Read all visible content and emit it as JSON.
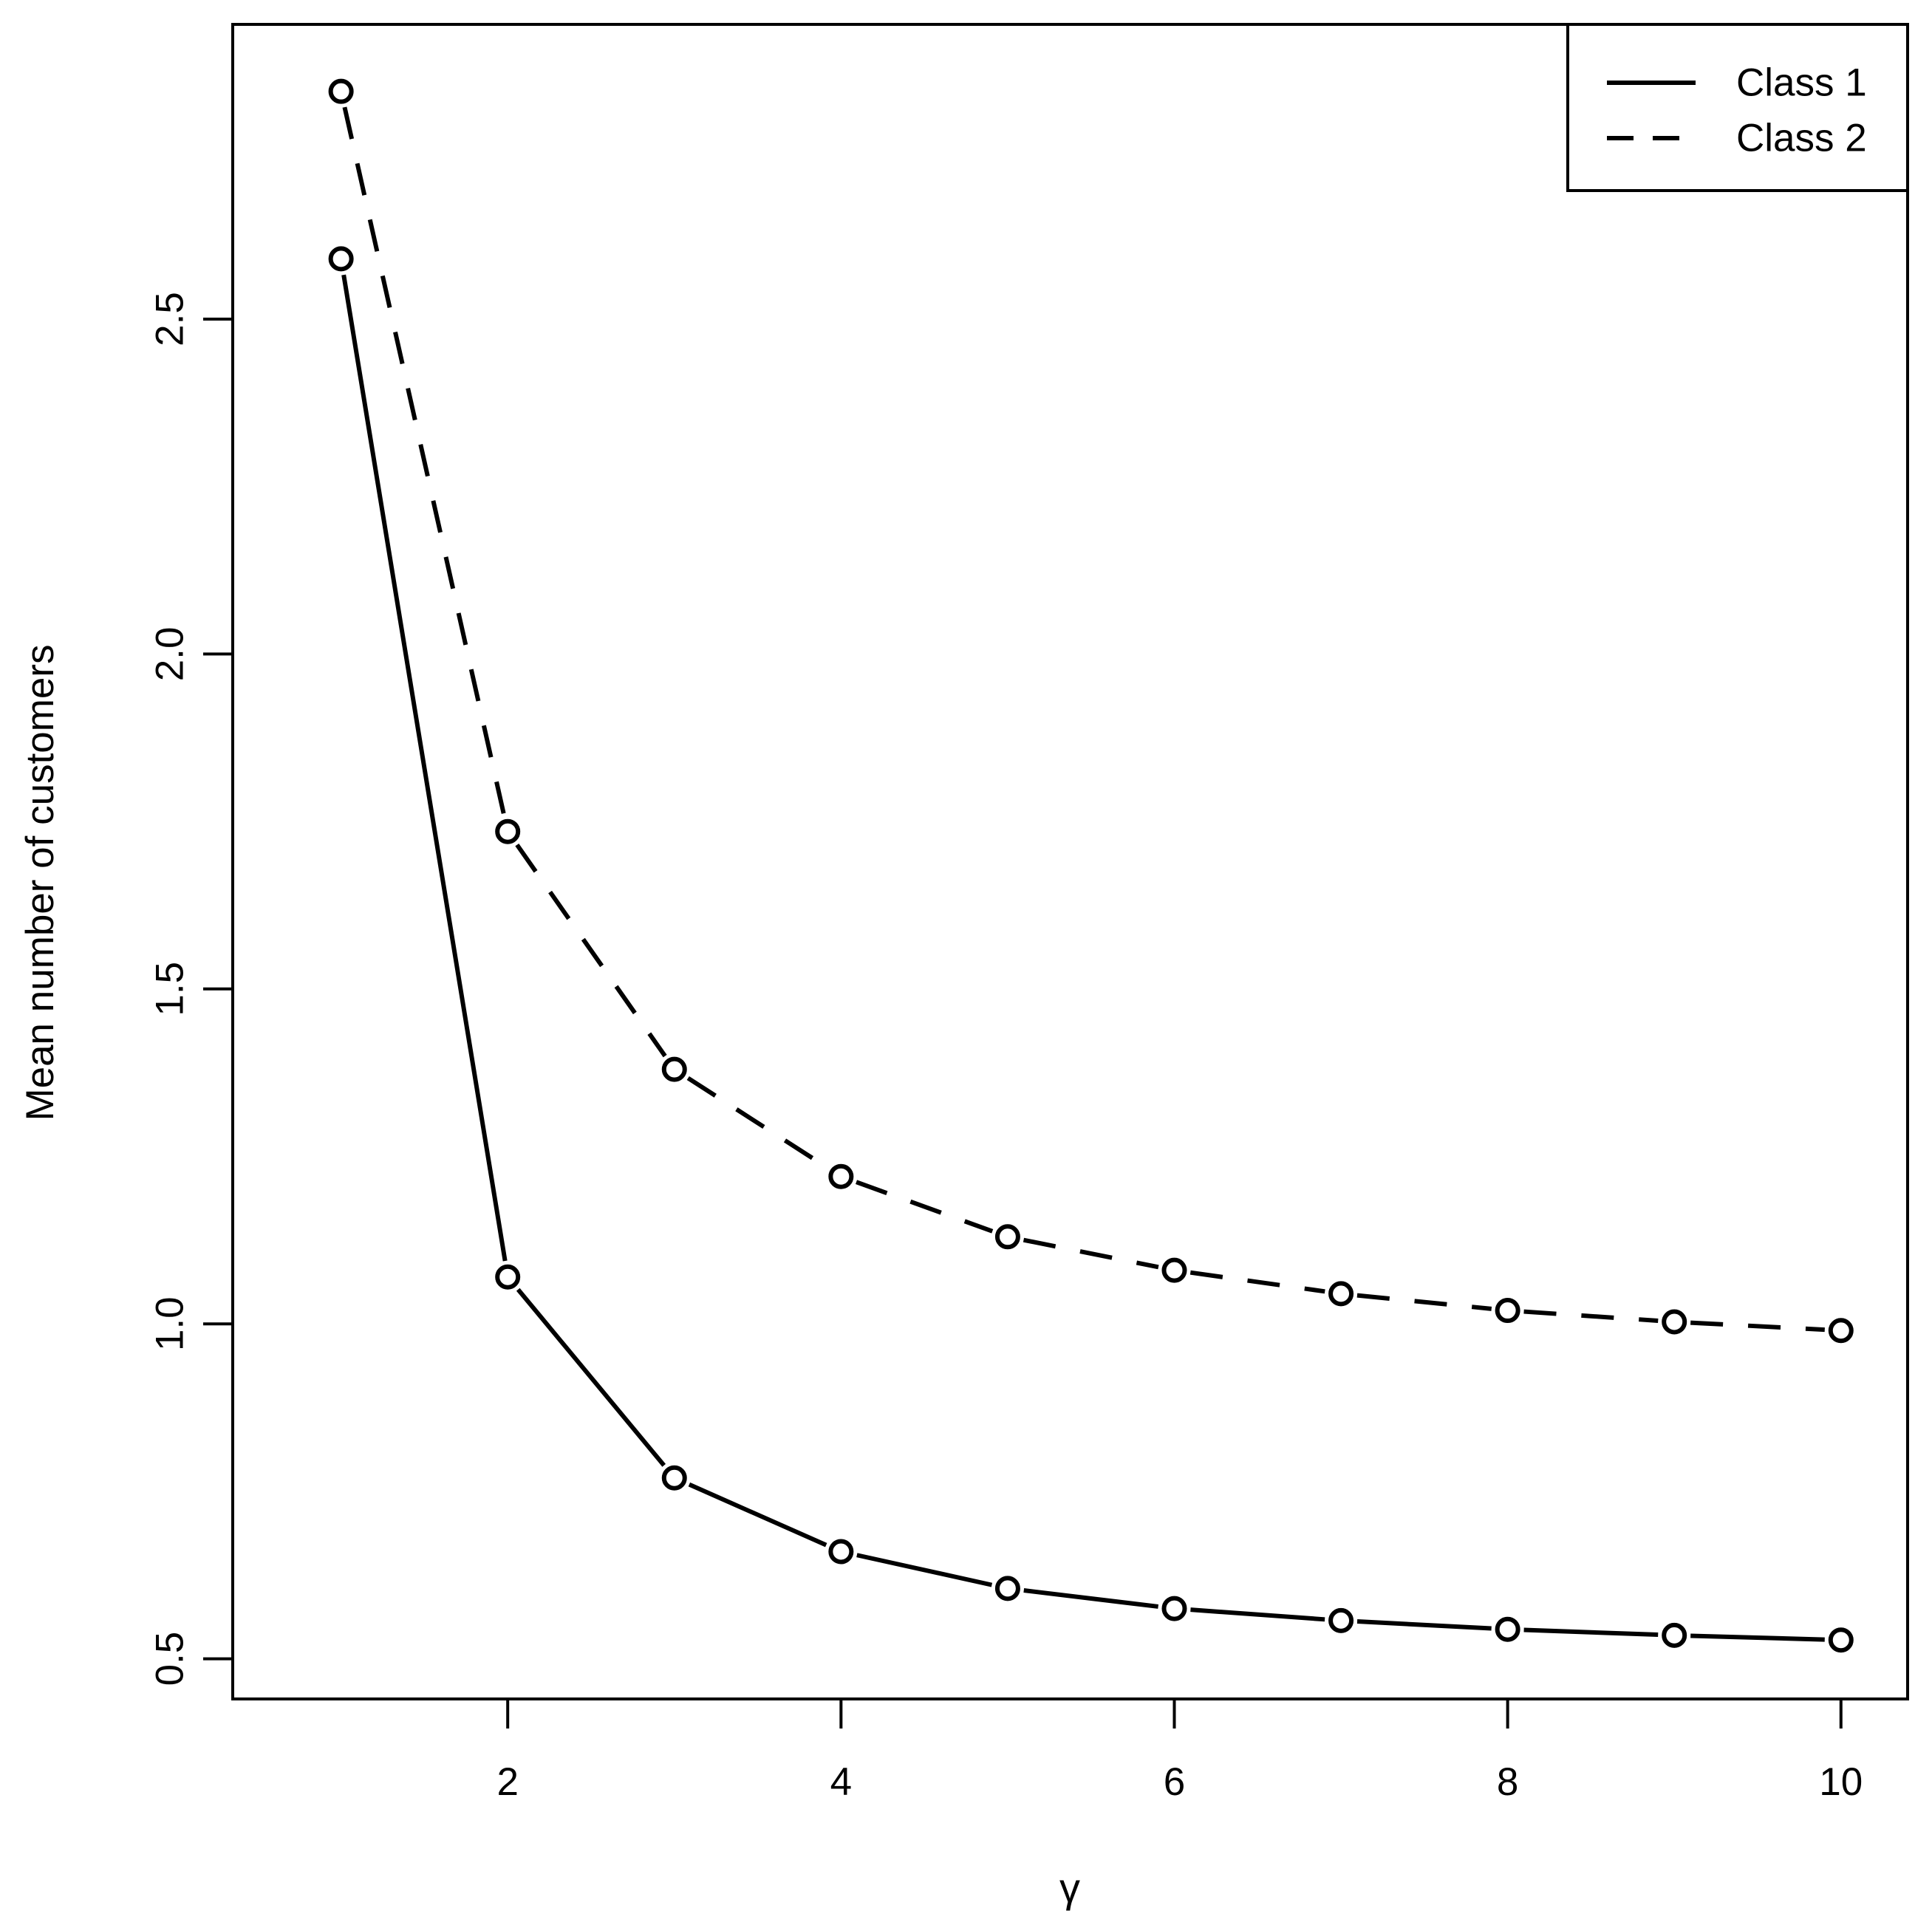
{
  "chart_data": {
    "type": "line",
    "title": "",
    "xlabel": "γ",
    "ylabel": "Mean number of customers",
    "x": [
      1,
      2,
      3,
      4,
      5,
      6,
      7,
      8,
      9,
      10
    ],
    "series": [
      {
        "name": "Class 1",
        "line_style": "solid",
        "marker": "open-circle",
        "values": [
          2.59,
          1.07,
          0.77,
          0.66,
          0.605,
          0.575,
          0.557,
          0.544,
          0.535,
          0.528
        ]
      },
      {
        "name": "Class 2",
        "line_style": "dashed",
        "marker": "open-circle",
        "values": [
          2.84,
          1.735,
          1.38,
          1.22,
          1.13,
          1.08,
          1.045,
          1.02,
          1.003,
          0.99
        ]
      }
    ],
    "xlim": [
      0.35,
      10.4
    ],
    "ylim": [
      0.44,
      2.94
    ],
    "x_ticks": [
      2,
      4,
      6,
      8,
      10
    ],
    "x_tick_labels": [
      "2",
      "4",
      "6",
      "8",
      "10"
    ],
    "y_ticks": [
      0.5,
      1.0,
      1.5,
      2.0,
      2.5
    ],
    "y_tick_labels": [
      "0.5",
      "1.0",
      "1.5",
      "2.0",
      "2.5"
    ],
    "grid": false,
    "legend_position": "top-right",
    "colors": {
      "line": "#000000",
      "background": "#ffffff"
    }
  }
}
